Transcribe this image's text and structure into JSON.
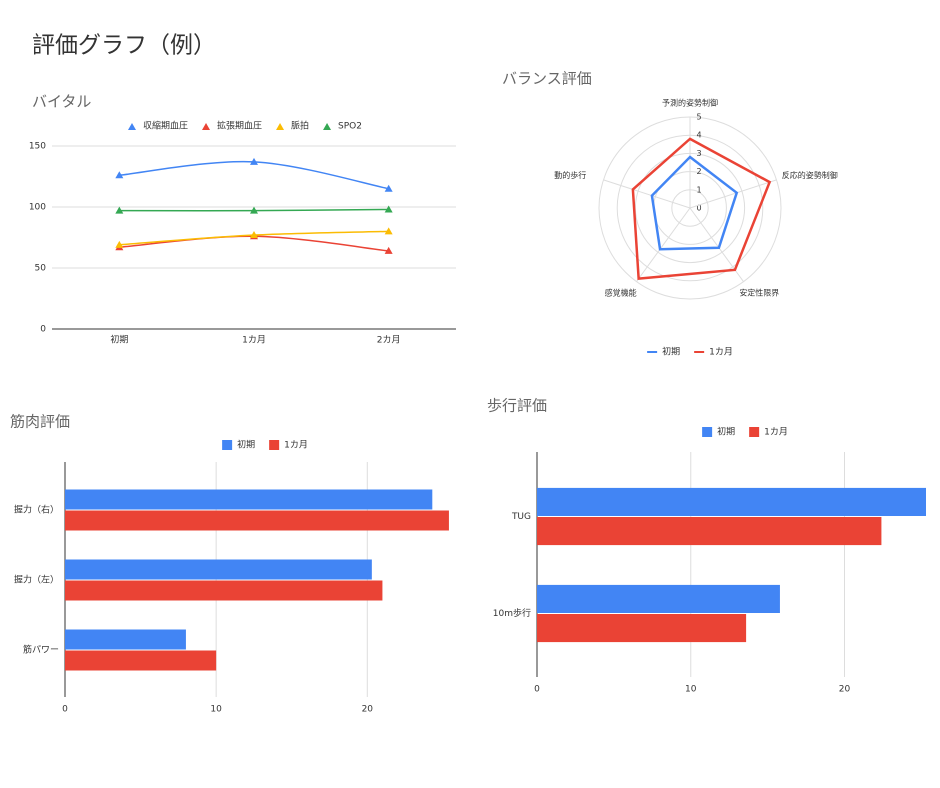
{
  "title": "評価グラフ（例）",
  "chart_data": [
    {
      "type": "line",
      "title": "バイタル",
      "categories": [
        "初期",
        "1カ月",
        "2カ月"
      ],
      "series": [
        {
          "name": "収縮期血圧",
          "color": "#4285f4",
          "values": [
            126,
            137,
            115
          ]
        },
        {
          "name": "拡張期血圧",
          "color": "#ea4335",
          "values": [
            67,
            76,
            64
          ]
        },
        {
          "name": "脈拍",
          "color": "#fbbc04",
          "values": [
            69,
            77,
            80
          ]
        },
        {
          "name": "SPO2",
          "color": "#34a853",
          "values": [
            97,
            97,
            98
          ]
        }
      ],
      "ylim": [
        0,
        150
      ],
      "yticks": [
        0,
        50,
        100,
        150
      ],
      "grid": true,
      "legend": "top"
    },
    {
      "type": "radar",
      "title": "バランス評価",
      "categories": [
        "予測的姿勢制御",
        "反応的姿勢制御",
        "安定性限界",
        "感覚機能",
        "動的歩行"
      ],
      "series": [
        {
          "name": "初期",
          "color": "#4285f4",
          "values": [
            2.8,
            2.7,
            2.7,
            2.8,
            2.2
          ]
        },
        {
          "name": "1カ月",
          "color": "#ea4335",
          "values": [
            3.8,
            4.6,
            4.2,
            4.8,
            3.3
          ]
        }
      ],
      "rlim": [
        0,
        5
      ],
      "rticks": [
        0,
        1,
        2,
        3,
        4,
        5
      ],
      "grid": true,
      "legend": "bottom"
    },
    {
      "type": "hbar",
      "title": "筋肉評価",
      "categories": [
        "握力（右）",
        "握力（左）",
        "筋パワー"
      ],
      "series": [
        {
          "name": "初期",
          "color": "#4285f4",
          "values": [
            24.3,
            20.3,
            8.0
          ]
        },
        {
          "name": "1カ月",
          "color": "#ea4335",
          "values": [
            25.4,
            21.0,
            10.0
          ]
        }
      ],
      "xlim": [
        0,
        26
      ],
      "xticks": [
        0,
        10,
        20
      ],
      "grid": true,
      "legend": "top"
    },
    {
      "type": "hbar",
      "title": "歩行評価",
      "categories": [
        "TUG",
        "10m歩行"
      ],
      "series": [
        {
          "name": "初期",
          "color": "#4285f4",
          "values": [
            25.3,
            15.8
          ]
        },
        {
          "name": "1カ月",
          "color": "#ea4335",
          "values": [
            22.4,
            13.6
          ]
        }
      ],
      "xlim": [
        0,
        25.3
      ],
      "xticks": [
        0,
        10,
        20
      ],
      "grid": true,
      "legend": "top"
    }
  ]
}
